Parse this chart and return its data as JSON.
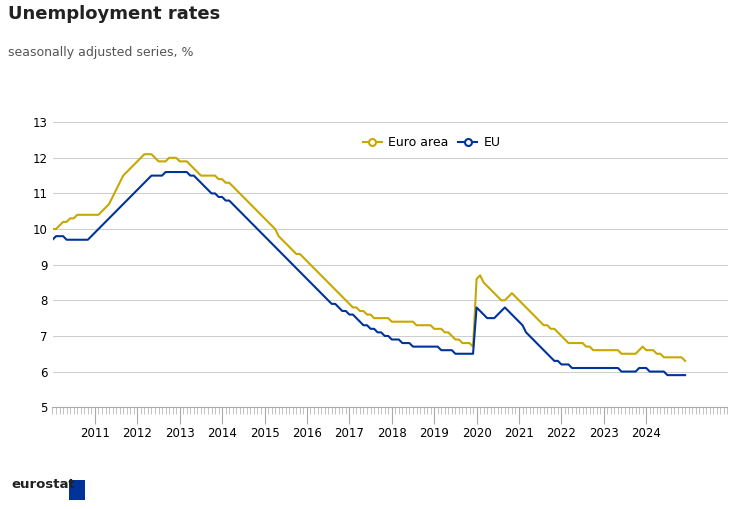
{
  "title": "Unemployment rates",
  "subtitle": "seasonally adjusted series, %",
  "euro_area": [
    10.0,
    10.0,
    10.1,
    10.2,
    10.2,
    10.3,
    10.3,
    10.4,
    10.4,
    10.4,
    10.4,
    10.4,
    10.4,
    10.4,
    10.5,
    10.6,
    10.7,
    10.9,
    11.1,
    11.3,
    11.5,
    11.6,
    11.7,
    11.8,
    11.9,
    12.0,
    12.1,
    12.1,
    12.1,
    12.0,
    11.9,
    11.9,
    11.9,
    12.0,
    12.0,
    12.0,
    11.9,
    11.9,
    11.9,
    11.8,
    11.7,
    11.6,
    11.5,
    11.5,
    11.5,
    11.5,
    11.5,
    11.4,
    11.4,
    11.3,
    11.3,
    11.2,
    11.1,
    11.0,
    10.9,
    10.8,
    10.7,
    10.6,
    10.5,
    10.4,
    10.3,
    10.2,
    10.1,
    10.0,
    9.8,
    9.7,
    9.6,
    9.5,
    9.4,
    9.3,
    9.3,
    9.2,
    9.1,
    9.0,
    8.9,
    8.8,
    8.7,
    8.6,
    8.5,
    8.4,
    8.3,
    8.2,
    8.1,
    8.0,
    7.9,
    7.8,
    7.8,
    7.7,
    7.7,
    7.6,
    7.6,
    7.5,
    7.5,
    7.5,
    7.5,
    7.5,
    7.4,
    7.4,
    7.4,
    7.4,
    7.4,
    7.4,
    7.4,
    7.3,
    7.3,
    7.3,
    7.3,
    7.3,
    7.2,
    7.2,
    7.2,
    7.1,
    7.1,
    7.0,
    6.9,
    6.9,
    6.8,
    6.8,
    6.8,
    6.7,
    8.6,
    8.7,
    8.5,
    8.4,
    8.3,
    8.2,
    8.1,
    8.0,
    8.0,
    8.1,
    8.2,
    8.1,
    8.0,
    7.9,
    7.8,
    7.7,
    7.6,
    7.5,
    7.4,
    7.3,
    7.3,
    7.2,
    7.2,
    7.1,
    7.0,
    6.9,
    6.8,
    6.8,
    6.8,
    6.8,
    6.8,
    6.7,
    6.7,
    6.6,
    6.6,
    6.6,
    6.6,
    6.6,
    6.6,
    6.6,
    6.6,
    6.5,
    6.5,
    6.5,
    6.5,
    6.5,
    6.6,
    6.7,
    6.6,
    6.6,
    6.6,
    6.5,
    6.5,
    6.4,
    6.4,
    6.4,
    6.4,
    6.4,
    6.4,
    6.3
  ],
  "eu": [
    9.7,
    9.8,
    9.8,
    9.8,
    9.7,
    9.7,
    9.7,
    9.7,
    9.7,
    9.7,
    9.7,
    9.8,
    9.9,
    10.0,
    10.1,
    10.2,
    10.3,
    10.4,
    10.5,
    10.6,
    10.7,
    10.8,
    10.9,
    11.0,
    11.1,
    11.2,
    11.3,
    11.4,
    11.5,
    11.5,
    11.5,
    11.5,
    11.6,
    11.6,
    11.6,
    11.6,
    11.6,
    11.6,
    11.6,
    11.5,
    11.5,
    11.4,
    11.3,
    11.2,
    11.1,
    11.0,
    11.0,
    10.9,
    10.9,
    10.8,
    10.8,
    10.7,
    10.6,
    10.5,
    10.4,
    10.3,
    10.2,
    10.1,
    10.0,
    9.9,
    9.8,
    9.7,
    9.6,
    9.5,
    9.4,
    9.3,
    9.2,
    9.1,
    9.0,
    8.9,
    8.8,
    8.7,
    8.6,
    8.5,
    8.4,
    8.3,
    8.2,
    8.1,
    8.0,
    7.9,
    7.9,
    7.8,
    7.7,
    7.7,
    7.6,
    7.6,
    7.5,
    7.4,
    7.3,
    7.3,
    7.2,
    7.2,
    7.1,
    7.1,
    7.0,
    7.0,
    6.9,
    6.9,
    6.9,
    6.8,
    6.8,
    6.8,
    6.7,
    6.7,
    6.7,
    6.7,
    6.7,
    6.7,
    6.7,
    6.7,
    6.6,
    6.6,
    6.6,
    6.6,
    6.5,
    6.5,
    6.5,
    6.5,
    6.5,
    6.5,
    7.8,
    7.7,
    7.6,
    7.5,
    7.5,
    7.5,
    7.6,
    7.7,
    7.8,
    7.7,
    7.6,
    7.5,
    7.4,
    7.3,
    7.1,
    7.0,
    6.9,
    6.8,
    6.7,
    6.6,
    6.5,
    6.4,
    6.3,
    6.3,
    6.2,
    6.2,
    6.2,
    6.1,
    6.1,
    6.1,
    6.1,
    6.1,
    6.1,
    6.1,
    6.1,
    6.1,
    6.1,
    6.1,
    6.1,
    6.1,
    6.1,
    6.0,
    6.0,
    6.0,
    6.0,
    6.0,
    6.1,
    6.1,
    6.1,
    6.0,
    6.0,
    6.0,
    6.0,
    6.0,
    5.9,
    5.9,
    5.9,
    5.9,
    5.9,
    5.9
  ],
  "start_year": 2010,
  "start_month": 1,
  "n_months": 180,
  "ylim": [
    5,
    13
  ],
  "yticks": [
    5,
    6,
    7,
    8,
    9,
    10,
    11,
    12,
    13
  ],
  "year_labels": [
    2011,
    2012,
    2013,
    2014,
    2015,
    2016,
    2017,
    2018,
    2019,
    2020,
    2021,
    2022,
    2023,
    2024
  ],
  "euro_area_color": "#c8a800",
  "eu_color": "#003399",
  "background_color": "#ffffff",
  "grid_color": "#cccccc",
  "title_fontsize": 13,
  "subtitle_fontsize": 9,
  "tick_label_fontsize": 8.5
}
